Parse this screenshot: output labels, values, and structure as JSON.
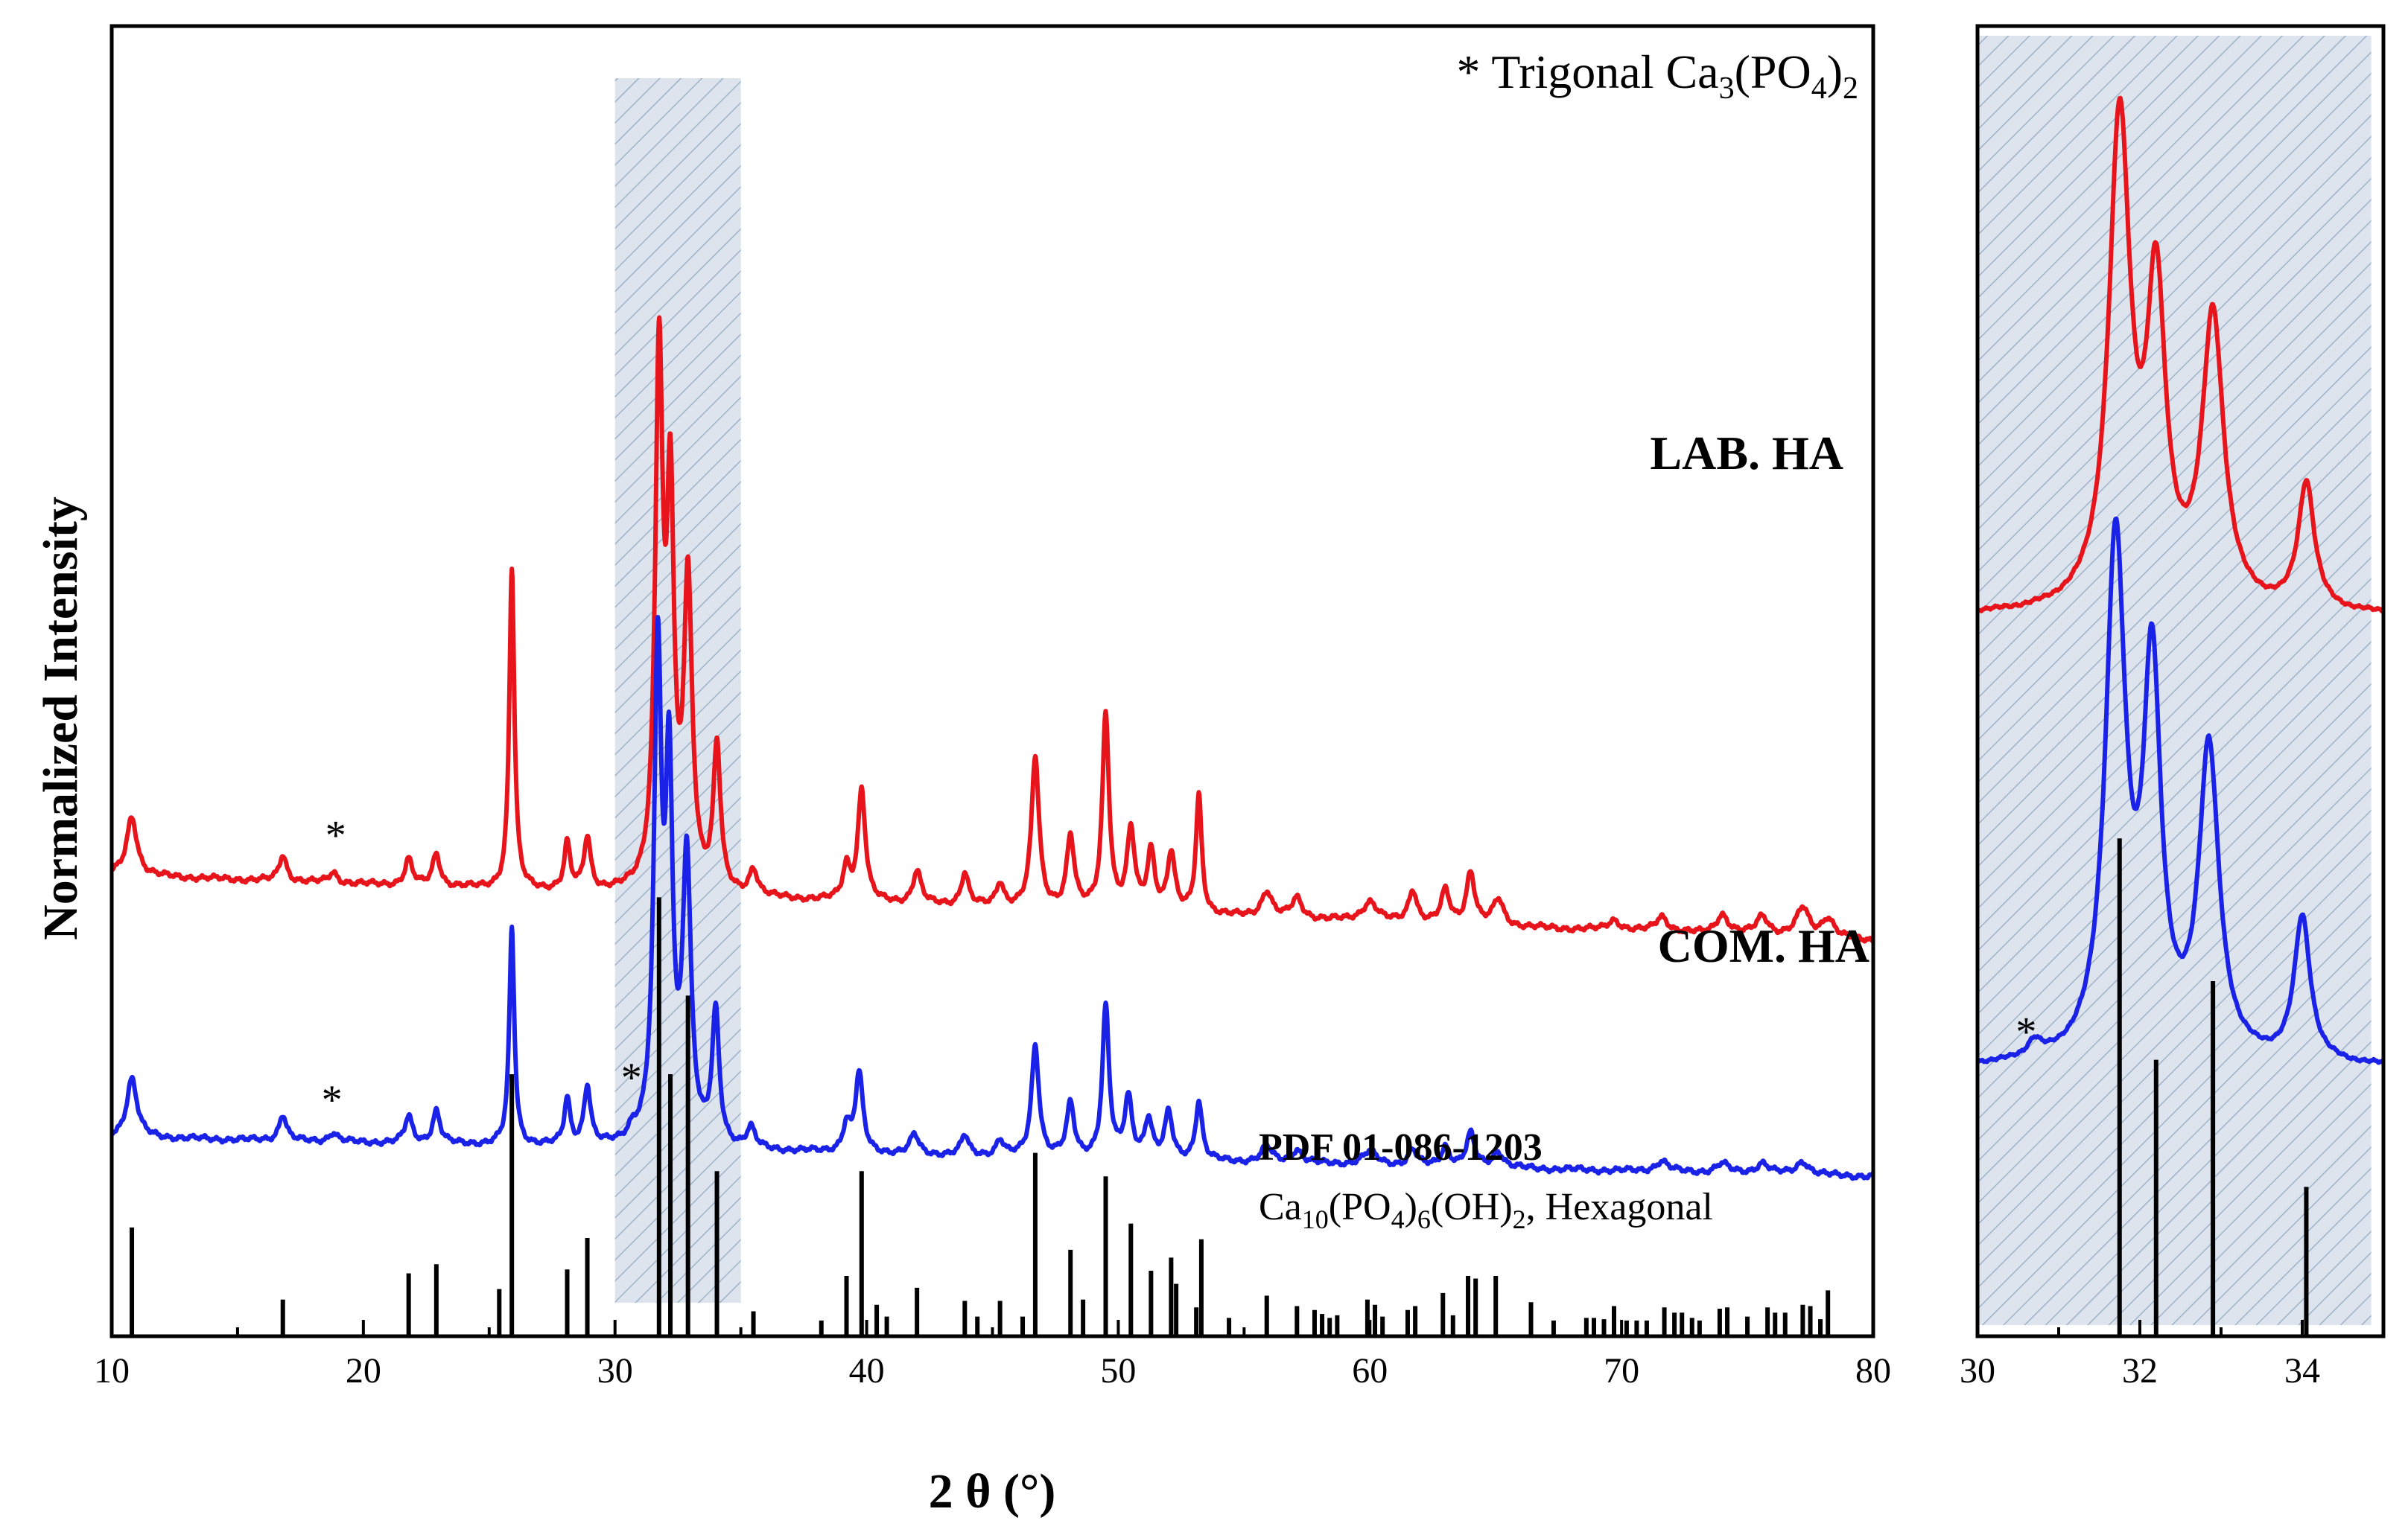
{
  "chart_data": [
    {
      "id": "main",
      "type": "line",
      "xlabel": "2 θ (°)",
      "ylabel": "Normalized Intensity",
      "xlim": [
        10,
        80
      ],
      "xticks": [
        10,
        20,
        30,
        40,
        50,
        60,
        70,
        80
      ],
      "legend_note": "* Trigonal Ca₃(PO₄)₂",
      "legend_note_parts": {
        "star": "*",
        "text": "Trigonal Ca",
        "sub1": "3",
        "mid": "(PO",
        "sub2": "4",
        "end": ")",
        "sub3": "2"
      },
      "highlight_region": [
        30,
        35
      ],
      "star_marker": "*",
      "series": [
        {
          "name": "LAB. HA",
          "color": "#e8141c",
          "baseline": {
            "start": 0.352,
            "end": 0.302
          },
          "peaks": [
            [
              10.8,
              0.045,
              0.25
            ],
            [
              16.8,
              0.02,
              0.18
            ],
            [
              18.8,
              0.008,
              0.2
            ],
            [
              21.8,
              0.02,
              0.18
            ],
            [
              22.9,
              0.025,
              0.18
            ],
            [
              25.9,
              0.245,
              0.12
            ],
            [
              28.1,
              0.035,
              0.14
            ],
            [
              28.9,
              0.04,
              0.16
            ],
            [
              31.75,
              0.4,
              0.18
            ],
            [
              32.2,
              0.28,
              0.17
            ],
            [
              32.9,
              0.23,
              0.2
            ],
            [
              34.05,
              0.11,
              0.17
            ],
            [
              35.5,
              0.02,
              0.2
            ],
            [
              39.2,
              0.025,
              0.18
            ],
            [
              39.8,
              0.085,
              0.18
            ],
            [
              42.0,
              0.025,
              0.2
            ],
            [
              43.9,
              0.025,
              0.18
            ],
            [
              45.3,
              0.018,
              0.18
            ],
            [
              46.7,
              0.115,
              0.18
            ],
            [
              48.1,
              0.055,
              0.18
            ],
            [
              49.5,
              0.15,
              0.16
            ],
            [
              50.5,
              0.06,
              0.18
            ],
            [
              51.3,
              0.045,
              0.18
            ],
            [
              52.1,
              0.045,
              0.18
            ],
            [
              53.2,
              0.09,
              0.14
            ],
            [
              55.9,
              0.02,
              0.25
            ],
            [
              57.1,
              0.015,
              0.25
            ],
            [
              60.0,
              0.015,
              0.35
            ],
            [
              61.7,
              0.025,
              0.2
            ],
            [
              63.0,
              0.025,
              0.2
            ],
            [
              64.0,
              0.04,
              0.2
            ],
            [
              65.1,
              0.02,
              0.25
            ],
            [
              69.7,
              0.008,
              0.3
            ],
            [
              71.6,
              0.012,
              0.3
            ],
            [
              74.0,
              0.015,
              0.3
            ],
            [
              75.6,
              0.015,
              0.3
            ],
            [
              77.2,
              0.022,
              0.3
            ],
            [
              78.2,
              0.015,
              0.3
            ]
          ]
        },
        {
          "name": "COM. HA",
          "color": "#1a22e8",
          "baseline": {
            "start": 0.152,
            "end": 0.122
          },
          "peaks": [
            [
              10.8,
              0.045,
              0.25
            ],
            [
              16.8,
              0.02,
              0.18
            ],
            [
              18.8,
              0.007,
              0.2
            ],
            [
              21.8,
              0.02,
              0.18
            ],
            [
              22.9,
              0.025,
              0.18
            ],
            [
              25.9,
              0.165,
              0.12
            ],
            [
              28.1,
              0.035,
              0.14
            ],
            [
              28.9,
              0.045,
              0.16
            ],
            [
              30.7,
              0.008,
              0.22
            ],
            [
              31.7,
              0.365,
              0.18
            ],
            [
              32.15,
              0.265,
              0.17
            ],
            [
              32.85,
              0.215,
              0.2
            ],
            [
              34.0,
              0.1,
              0.17
            ],
            [
              35.4,
              0.015,
              0.2
            ],
            [
              39.2,
              0.02,
              0.18
            ],
            [
              39.7,
              0.06,
              0.18
            ],
            [
              41.9,
              0.015,
              0.2
            ],
            [
              43.9,
              0.015,
              0.18
            ],
            [
              45.3,
              0.012,
              0.18
            ],
            [
              46.7,
              0.085,
              0.18
            ],
            [
              48.1,
              0.04,
              0.18
            ],
            [
              49.5,
              0.115,
              0.16
            ],
            [
              50.4,
              0.045,
              0.18
            ],
            [
              51.2,
              0.03,
              0.18
            ],
            [
              52.0,
              0.035,
              0.18
            ],
            [
              53.2,
              0.045,
              0.16
            ],
            [
              55.9,
              0.012,
              0.25
            ],
            [
              57.1,
              0.01,
              0.25
            ],
            [
              60.0,
              0.01,
              0.35
            ],
            [
              61.7,
              0.012,
              0.2
            ],
            [
              63.0,
              0.015,
              0.2
            ],
            [
              64.0,
              0.025,
              0.2
            ],
            [
              65.1,
              0.012,
              0.25
            ],
            [
              71.6,
              0.008,
              0.3
            ],
            [
              74.0,
              0.007,
              0.3
            ],
            [
              75.6,
              0.008,
              0.3
            ],
            [
              77.2,
              0.01,
              0.3
            ]
          ]
        }
      ],
      "reference": {
        "title": "PDF 01-086-1203",
        "formula_parts": {
          "a": "Ca",
          "s1": "10",
          "b": "(PO",
          "s2": "4",
          "c": ")",
          "s3": "6",
          "d": "(OH)",
          "s4": "2",
          "e": ", Hexagonal"
        },
        "sticks": [
          [
            10.8,
            0.083
          ],
          [
            16.8,
            0.028
          ],
          [
            21.8,
            0.048
          ],
          [
            22.9,
            0.055
          ],
          [
            25.4,
            0.036
          ],
          [
            25.9,
            0.2
          ],
          [
            28.1,
            0.051
          ],
          [
            28.9,
            0.075
          ],
          [
            31.75,
            0.335
          ],
          [
            32.2,
            0.2
          ],
          [
            32.9,
            0.26
          ],
          [
            34.05,
            0.126
          ],
          [
            35.5,
            0.019
          ],
          [
            38.2,
            0.012
          ],
          [
            39.2,
            0.046
          ],
          [
            39.8,
            0.126
          ],
          [
            40.4,
            0.024
          ],
          [
            40.8,
            0.015
          ],
          [
            42.0,
            0.037
          ],
          [
            43.9,
            0.027
          ],
          [
            44.4,
            0.015
          ],
          [
            45.3,
            0.027
          ],
          [
            46.2,
            0.015
          ],
          [
            46.7,
            0.14
          ],
          [
            48.1,
            0.066
          ],
          [
            48.6,
            0.028
          ],
          [
            49.5,
            0.122
          ],
          [
            50.5,
            0.086
          ],
          [
            51.3,
            0.05
          ],
          [
            52.1,
            0.06
          ],
          [
            52.3,
            0.04
          ],
          [
            53.1,
            0.022
          ],
          [
            53.3,
            0.074
          ],
          [
            54.4,
            0.014
          ],
          [
            55.9,
            0.031
          ],
          [
            57.1,
            0.023
          ],
          [
            57.8,
            0.02
          ],
          [
            58.1,
            0.017
          ],
          [
            58.4,
            0.014
          ],
          [
            58.7,
            0.016
          ],
          [
            59.9,
            0.028
          ],
          [
            60.2,
            0.024
          ],
          [
            60.5,
            0.015
          ],
          [
            61.5,
            0.02
          ],
          [
            61.8,
            0.023
          ],
          [
            62.9,
            0.033
          ],
          [
            63.3,
            0.016
          ],
          [
            63.9,
            0.046
          ],
          [
            64.2,
            0.044
          ],
          [
            65.0,
            0.046
          ],
          [
            66.4,
            0.026
          ],
          [
            67.3,
            0.012
          ],
          [
            68.6,
            0.014
          ],
          [
            68.9,
            0.014
          ],
          [
            69.3,
            0.013
          ],
          [
            69.7,
            0.023
          ],
          [
            70.2,
            0.012
          ],
          [
            70.6,
            0.012
          ],
          [
            71.0,
            0.012
          ],
          [
            71.7,
            0.022
          ],
          [
            72.1,
            0.018
          ],
          [
            72.4,
            0.018
          ],
          [
            72.8,
            0.014
          ],
          [
            73.1,
            0.012
          ],
          [
            73.9,
            0.021
          ],
          [
            74.2,
            0.022
          ],
          [
            75.0,
            0.015
          ],
          [
            75.8,
            0.022
          ],
          [
            76.1,
            0.018
          ],
          [
            76.5,
            0.018
          ],
          [
            77.2,
            0.024
          ],
          [
            77.5,
            0.023
          ],
          [
            77.9,
            0.013
          ],
          [
            78.2,
            0.035
          ]
        ]
      }
    },
    {
      "id": "inset",
      "type": "line",
      "xlim": [
        30,
        35
      ],
      "xticks": [
        30,
        32,
        34
      ],
      "star_marker": "*",
      "series": [
        {
          "name": "LAB. HA",
          "color": "#e8141c",
          "baseline": 0.55,
          "peaks": [
            [
              31.75,
              0.37,
              0.16
            ],
            [
              32.2,
              0.232,
              0.14
            ],
            [
              32.9,
              0.22,
              0.16
            ],
            [
              34.05,
              0.097,
              0.12
            ]
          ]
        },
        {
          "name": "COM. HA",
          "color": "#1a22e8",
          "baseline": 0.205,
          "peaks": [
            [
              30.7,
              0.012,
              0.1
            ],
            [
              31.7,
              0.393,
              0.15
            ],
            [
              32.15,
              0.29,
              0.13
            ],
            [
              32.85,
              0.235,
              0.15
            ],
            [
              34.0,
              0.11,
              0.12
            ]
          ]
        }
      ],
      "reference_sticks": [
        [
          31.75,
          0.38
        ],
        [
          32.2,
          0.211
        ],
        [
          32.9,
          0.271
        ],
        [
          34.05,
          0.114
        ]
      ]
    }
  ]
}
